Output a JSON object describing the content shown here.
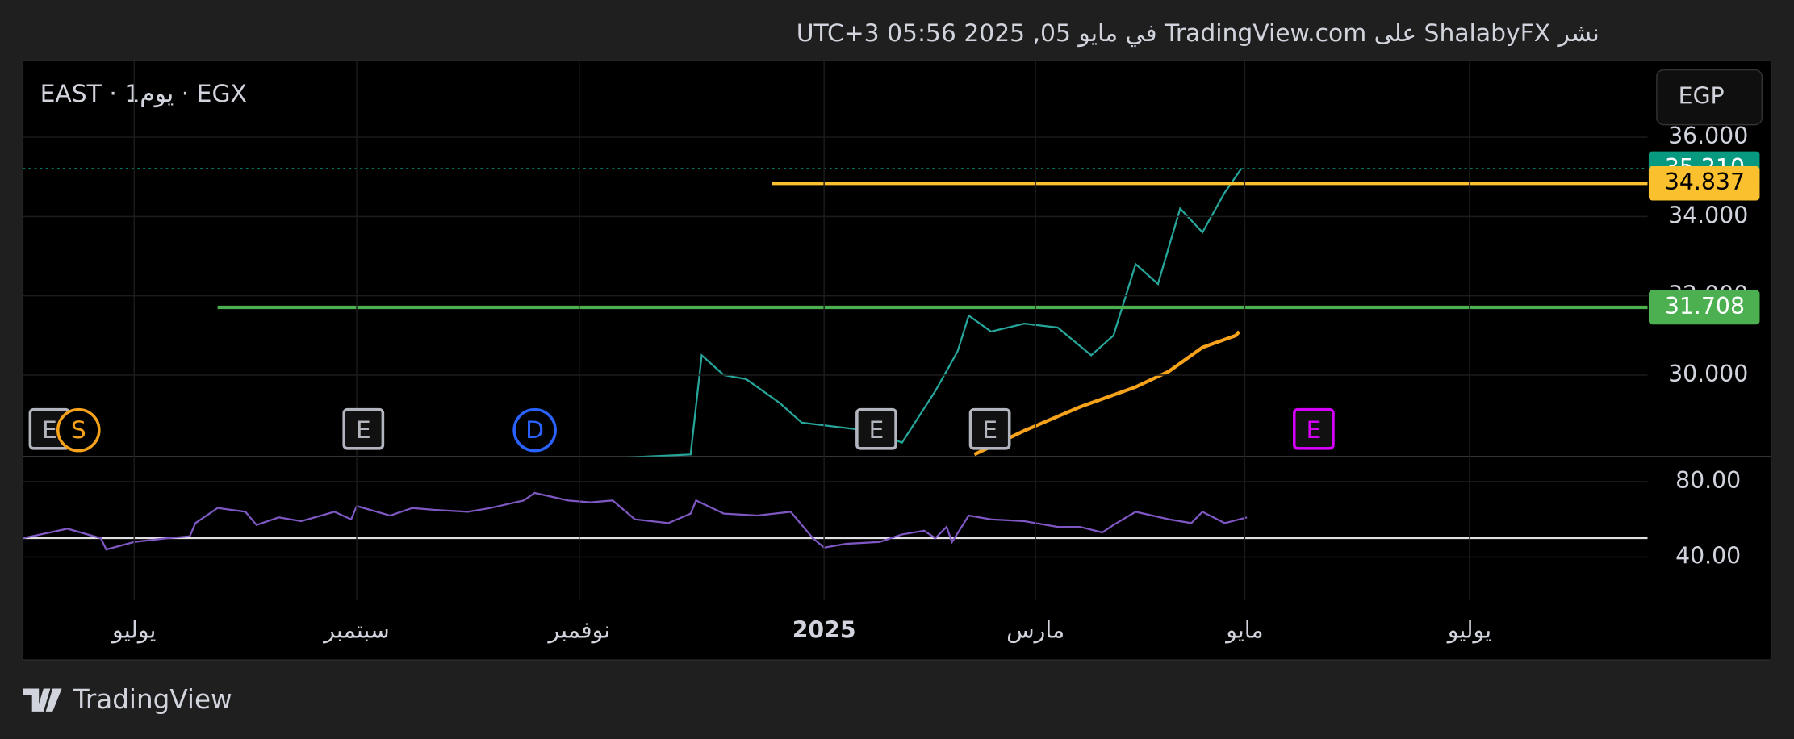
{
  "header": {
    "text": "نشر ShalabyFX على TradingView.com في مايو 05, 2025 05:56 UTC+3"
  },
  "symbol": "EAST · 1يوم · EGX",
  "currency": "EGP",
  "footer": {
    "brand": "TradingView"
  },
  "chart_data": [
    {
      "type": "line",
      "xlim": [
        -1.0,
        13.6
      ],
      "xticks": [
        {
          "value": 0,
          "label": "يوليو"
        },
        {
          "value": 2,
          "label": "سبتمبر"
        },
        {
          "value": 4,
          "label": "نوفمبر"
        },
        {
          "value": 6.2,
          "label": "2025"
        },
        {
          "value": 8.1,
          "label": "مارس"
        },
        {
          "value": 9.98,
          "label": "مايو"
        },
        {
          "value": 12,
          "label": "يوليو"
        }
      ],
      "ylim": [
        27.95,
        37.93
      ],
      "yticks": [
        {
          "value": 30,
          "label": "30.000"
        },
        {
          "value": 32,
          "label": "32.000"
        },
        {
          "value": 34,
          "label": "34.000"
        },
        {
          "value": 36,
          "label": "36.000"
        }
      ],
      "grid": true,
      "series": [
        {
          "name": "EAST",
          "color": "#26a69a",
          "x": [
            4.25,
            5.0,
            5.1,
            5.3,
            5.5,
            5.8,
            6.0,
            6.3,
            6.6,
            6.9,
            7.2,
            7.4,
            7.5,
            7.7,
            8.0,
            8.3,
            8.6,
            8.8,
            9.0,
            9.2,
            9.4,
            9.6,
            9.8,
            9.95
          ],
          "values": [
            27.9,
            28.0,
            30.5,
            30.0,
            29.9,
            29.3,
            28.8,
            28.7,
            28.6,
            28.3,
            29.6,
            30.6,
            31.5,
            31.1,
            31.3,
            31.2,
            30.5,
            31.0,
            32.8,
            32.3,
            34.2,
            33.6,
            34.6,
            35.21
          ]
        },
        {
          "name": "MA",
          "color": "#f7a21b",
          "x": [
            7.55,
            8.0,
            8.5,
            9.0,
            9.3,
            9.6,
            9.9,
            9.93
          ],
          "values": [
            28.0,
            28.6,
            29.2,
            29.7,
            30.1,
            30.7,
            31.0,
            31.1
          ]
        }
      ],
      "levels": [
        {
          "value": 35.21,
          "label": "35.210",
          "color": "#089981",
          "from": -1.0,
          "dotted": true
        },
        {
          "value": 34.837,
          "label": "34.837",
          "color": "#fbc02d",
          "from": 5.73,
          "dotted": false
        },
        {
          "value": 31.708,
          "label": "31.708",
          "color": "#4caf50",
          "from": 0.75,
          "dotted": false
        }
      ],
      "events": [
        {
          "label": "E",
          "x": -0.76,
          "color": "#b2b5be"
        },
        {
          "label": "S",
          "x": -0.5,
          "color": "#f7a21b"
        },
        {
          "label": "E",
          "x": 2.06,
          "color": "#b2b5be"
        },
        {
          "label": "D",
          "x": 3.6,
          "color": "#2962ff"
        },
        {
          "label": "E",
          "x": 6.67,
          "color": "#b2b5be"
        },
        {
          "label": "E",
          "x": 7.69,
          "color": "#b2b5be"
        },
        {
          "label": "E",
          "x": 10.6,
          "color": "#d500f9"
        }
      ]
    },
    {
      "type": "line",
      "ylim": [
        16.97,
        93.3
      ],
      "yticks": [
        {
          "value": 40,
          "label": "40.00"
        },
        {
          "value": 80,
          "label": "80.00"
        }
      ],
      "reference": 50,
      "series": [
        {
          "name": "RSI",
          "color": "#7e57c2",
          "x": [
            -1.0,
            -0.6,
            -0.3,
            -0.25,
            0.0,
            0.3,
            0.5,
            0.55,
            0.75,
            1.0,
            1.1,
            1.3,
            1.5,
            1.8,
            1.95,
            2.0,
            2.3,
            2.5,
            2.7,
            3.0,
            3.2,
            3.5,
            3.6,
            3.9,
            4.1,
            4.3,
            4.5,
            4.8,
            5.0,
            5.05,
            5.3,
            5.6,
            5.9,
            6.1,
            6.2,
            6.4,
            6.7,
            6.9,
            7.1,
            7.2,
            7.3,
            7.35,
            7.5,
            7.7,
            8.0,
            8.3,
            8.5,
            8.7,
            8.8,
            9.0,
            9.3,
            9.5,
            9.6,
            9.8,
            10.0
          ],
          "values": [
            50,
            55,
            50,
            44,
            48,
            50,
            51,
            58,
            66,
            64,
            57,
            61,
            59,
            64,
            60,
            67,
            62,
            66,
            65,
            64,
            66,
            70,
            74,
            70,
            69,
            70,
            60,
            58,
            63,
            70,
            63,
            62,
            64,
            50,
            45,
            47,
            48,
            52,
            54,
            50,
            56,
            48,
            62,
            60,
            59,
            56,
            56,
            53,
            57,
            64,
            60,
            58,
            64,
            58,
            61
          ]
        }
      ]
    }
  ]
}
